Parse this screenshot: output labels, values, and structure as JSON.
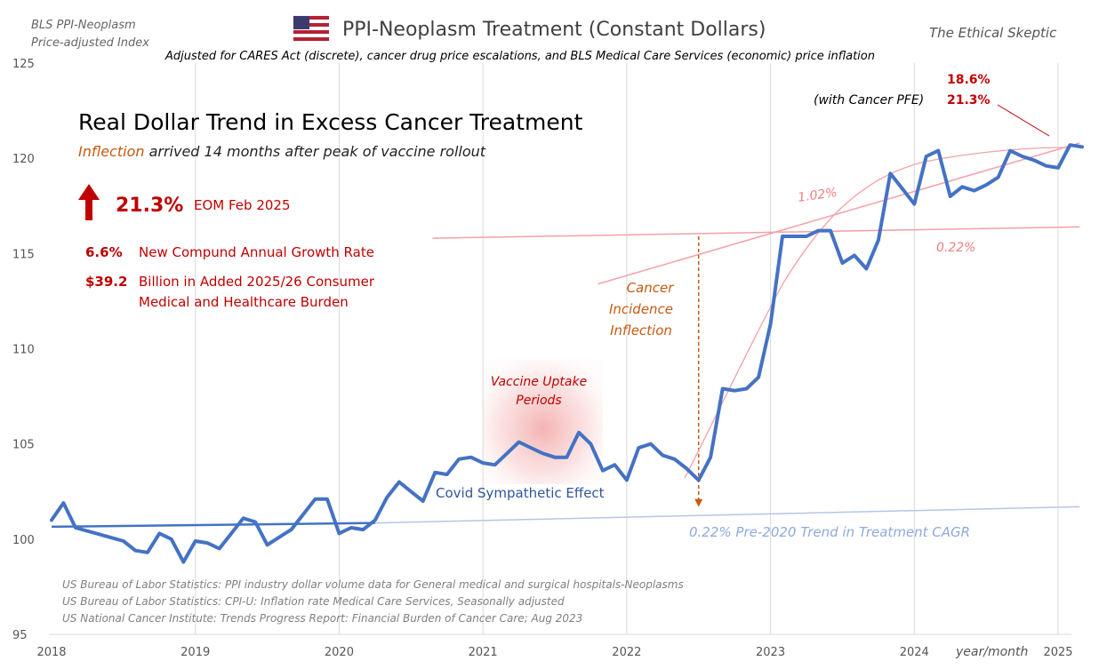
{
  "header": {
    "left_label_line1": "BLS PPI-Neoplasm",
    "left_label_line2": "Price-adjusted  Index",
    "title": "PPI-Neoplasm  Treatment  (Constant Dollars)",
    "subtitle": "Adjusted for CARES Act (discrete),  cancer drug price escalations, and BLS Medical Care Services (economic) price inflation",
    "brand": "The Ethical Skeptic"
  },
  "panel": {
    "heading": "Real Dollar Trend in Excess Cancer Treatment",
    "sub_highlight": "Inflection",
    "sub_rest": " arrived 14 months after peak of vaccine rollout",
    "big_pct": "21.3%",
    "big_pct_note": "EOM Feb 2025",
    "cagr_value": "6.6%",
    "cagr_label": "New Compund Annual Growth Rate",
    "burden_value": "$39.2",
    "burden_label_line1": "Billion in Added 2025/26 Consumer",
    "burden_label_line2": "Medical and Healthcare Burden"
  },
  "annotations": {
    "top_right_pct": "18.6%",
    "with_pfe_label": "(with Cancer PFE)",
    "with_pfe_pct": "21.3%",
    "trend_102": "1.02%",
    "trend_022_upper": "0.22%",
    "inflection_line1": "Cancer",
    "inflection_line2": "Incidence",
    "inflection_line3": "Inflection",
    "vaccine_line1": "Vaccine Uptake",
    "vaccine_line2": "Periods",
    "covid_effect": "Covid Sympathetic Effect",
    "pre2020_trend": "0.22%  Pre-2020 Trend in Treatment CAGR",
    "xaxis_note": "year/month"
  },
  "sources": [
    "US Bureau of Labor Statistics: PPI industry dollar volume data for General medical and surgical hospitals-Neoplasms",
    "US Bureau of Labor Statistics: CPI-U: Inflation rate Medical Care Services, Seasonally adjusted",
    "US National Cancer Institute: Trends Progress Report: Financial Burden of Cancer Care; Aug 2023"
  ],
  "colors": {
    "series": "#4472c4",
    "accent_red": "#c00000",
    "trend_pink": "#f4a0a8",
    "inflection_orange": "#c55a11",
    "trend_blue_light": "#8eaadb"
  },
  "chart_data": {
    "type": "line",
    "ylim": [
      95,
      125
    ],
    "yticks": [
      "95",
      "100",
      "105",
      "110",
      "115",
      "120",
      "125"
    ],
    "xlim": [
      2018.0,
      2025.15
    ],
    "xticks": [
      "2018",
      "2019",
      "2020",
      "2021",
      "2022",
      "2023",
      "2024",
      "2025"
    ],
    "grid": "vertical lines at each year",
    "series": [
      {
        "points": [
          [
            2018.0,
            101.0
          ],
          [
            2018.083,
            101.9
          ],
          [
            2018.167,
            100.6
          ],
          [
            2018.5,
            99.9
          ],
          [
            2018.583,
            99.4
          ],
          [
            2018.667,
            99.3
          ],
          [
            2018.75,
            100.3
          ],
          [
            2018.833,
            100.0
          ],
          [
            2018.917,
            98.8
          ],
          [
            2019.0,
            99.9
          ],
          [
            2019.083,
            99.8
          ],
          [
            2019.167,
            99.5
          ],
          [
            2019.333,
            101.1
          ],
          [
            2019.417,
            100.9
          ],
          [
            2019.5,
            99.7
          ],
          [
            2019.583,
            100.1
          ],
          [
            2019.667,
            100.5
          ],
          [
            2019.75,
            101.3
          ],
          [
            2019.833,
            102.1
          ],
          [
            2019.917,
            102.1
          ],
          [
            2020.0,
            100.3
          ],
          [
            2020.083,
            100.6
          ],
          [
            2020.167,
            100.5
          ],
          [
            2020.25,
            101.0
          ],
          [
            2020.333,
            102.2
          ],
          [
            2020.417,
            103.0
          ],
          [
            2020.5,
            102.5
          ],
          [
            2020.583,
            102.0
          ],
          [
            2020.667,
            103.5
          ],
          [
            2020.75,
            103.4
          ],
          [
            2020.833,
            104.2
          ],
          [
            2020.917,
            104.3
          ],
          [
            2021.0,
            104.0
          ],
          [
            2021.083,
            103.9
          ],
          [
            2021.167,
            104.5
          ],
          [
            2021.25,
            105.1
          ],
          [
            2021.333,
            104.8
          ],
          [
            2021.417,
            104.5
          ],
          [
            2021.5,
            104.3
          ],
          [
            2021.583,
            104.3
          ],
          [
            2021.667,
            105.6
          ],
          [
            2021.75,
            105.0
          ],
          [
            2021.833,
            103.6
          ],
          [
            2021.917,
            103.9
          ],
          [
            2022.0,
            103.1
          ],
          [
            2022.083,
            104.8
          ],
          [
            2022.167,
            105.0
          ],
          [
            2022.25,
            104.4
          ],
          [
            2022.333,
            104.2
          ],
          [
            2022.417,
            103.7
          ],
          [
            2022.5,
            103.1
          ],
          [
            2022.583,
            104.3
          ],
          [
            2022.667,
            107.9
          ],
          [
            2022.75,
            107.8
          ],
          [
            2022.833,
            107.9
          ],
          [
            2022.917,
            108.5
          ],
          [
            2023.0,
            111.3
          ],
          [
            2023.083,
            115.9
          ],
          [
            2023.167,
            115.9
          ],
          [
            2023.25,
            115.9
          ],
          [
            2023.333,
            116.2
          ],
          [
            2023.417,
            116.2
          ],
          [
            2023.5,
            114.5
          ],
          [
            2023.583,
            114.9
          ],
          [
            2023.667,
            114.2
          ],
          [
            2023.75,
            115.7
          ],
          [
            2023.833,
            119.2
          ],
          [
            2023.917,
            118.4
          ],
          [
            2024.0,
            117.6
          ],
          [
            2024.083,
            120.1
          ],
          [
            2024.167,
            120.4
          ],
          [
            2024.25,
            118.0
          ],
          [
            2024.333,
            118.5
          ],
          [
            2024.417,
            118.3
          ],
          [
            2024.5,
            118.6
          ],
          [
            2024.583,
            119.0
          ],
          [
            2024.667,
            120.4
          ],
          [
            2024.75,
            120.1
          ],
          [
            2024.833,
            119.9
          ],
          [
            2024.917,
            119.6
          ],
          [
            2025.0,
            119.5
          ],
          [
            2025.083,
            120.7
          ],
          [
            2025.167,
            120.6
          ]
        ]
      }
    ],
    "trendlines": [
      {
        "label": "Pre-2020 Trend in Treatment CAGR",
        "rate": "0.22%",
        "from": [
          2018.0,
          100.65
        ],
        "to": [
          2020.25,
          100.85
        ]
      },
      {
        "rate": "0.22%",
        "from": [
          2020.25,
          100.85
        ],
        "to": [
          2025.15,
          101.7
        ]
      },
      {
        "rate": "1.02%",
        "from": [
          2021.8,
          113.4
        ],
        "to": [
          2025.15,
          120.8
        ]
      },
      {
        "rate": "0.22%",
        "from": [
          2020.65,
          115.8
        ],
        "to": [
          2025.15,
          116.4
        ]
      }
    ],
    "inflection_marker_x": 2022.5,
    "vaccine_band_x": [
      2021.0,
      2021.833
    ]
  }
}
